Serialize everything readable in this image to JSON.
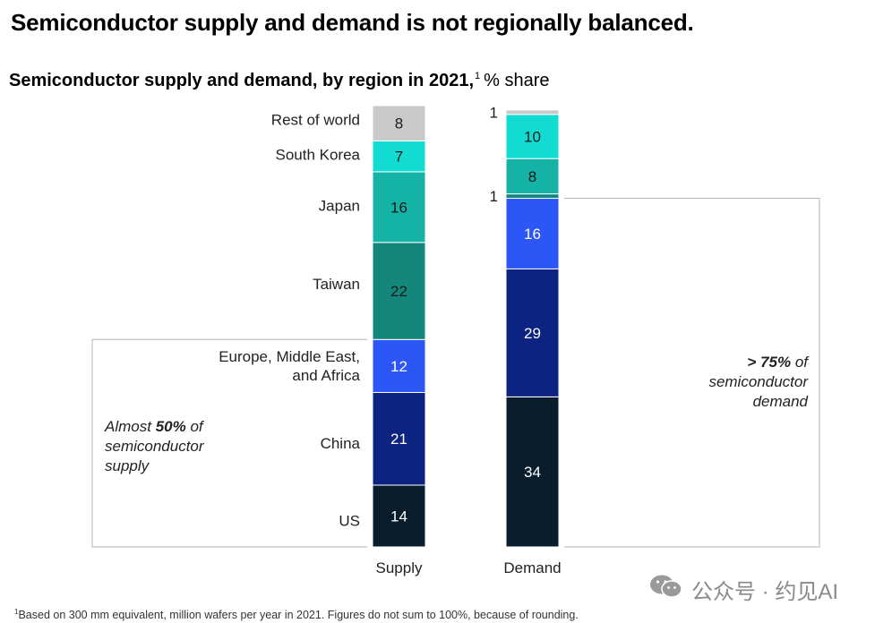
{
  "headline": "Semiconductor supply and demand is not regionally balanced.",
  "subtitle": {
    "bold": "Semiconductor supply and demand, by region in 2021,",
    "footnote_marker": "1",
    "unit": "% share"
  },
  "chart_data": {
    "type": "bar",
    "stacked": true,
    "title": "Semiconductor supply and demand, by region in 2021",
    "unit": "% share",
    "categories": [
      "Supply",
      "Demand"
    ],
    "series": [
      {
        "name": "US",
        "values": [
          14,
          34
        ],
        "color": "#0a1d2c"
      },
      {
        "name": "China",
        "values": [
          21,
          29
        ],
        "color": "#0c2381"
      },
      {
        "name": "Europe, Middle East, and Africa",
        "values": [
          12,
          16
        ],
        "color": "#2c56f5"
      },
      {
        "name": "Taiwan",
        "values": [
          22,
          1
        ],
        "color": "#14867c"
      },
      {
        "name": "Japan",
        "values": [
          16,
          8
        ],
        "color": "#15b3a6"
      },
      {
        "name": "South Korea",
        "values": [
          7,
          10
        ],
        "color": "#12dcd2"
      },
      {
        "name": "Rest of world",
        "values": [
          8,
          1
        ],
        "color": "#c9c9c9"
      }
    ],
    "region_labels": [
      "US",
      "China",
      "Europe, Middle East,",
      "and Africa",
      "Taiwan",
      "Japan",
      "South Korea",
      "Rest of world"
    ],
    "annotations": {
      "supply": {
        "prefix": "Almost ",
        "bold": "50%",
        "suffix": " of",
        "line2": "semiconductor",
        "line3": "supply"
      },
      "demand": {
        "prefix": "",
        "bold": "> 75%",
        "suffix": " of",
        "line2": "semiconductor",
        "line3": "demand"
      }
    }
  },
  "footnote": {
    "marker": "1",
    "text": "Based on 300 mm equivalent, million wafers per year in 2021. Figures do not sum to 100%, because of rounding."
  },
  "watermark": {
    "text": "公众号 · 约见AI",
    "icon": "wechat-icon"
  }
}
